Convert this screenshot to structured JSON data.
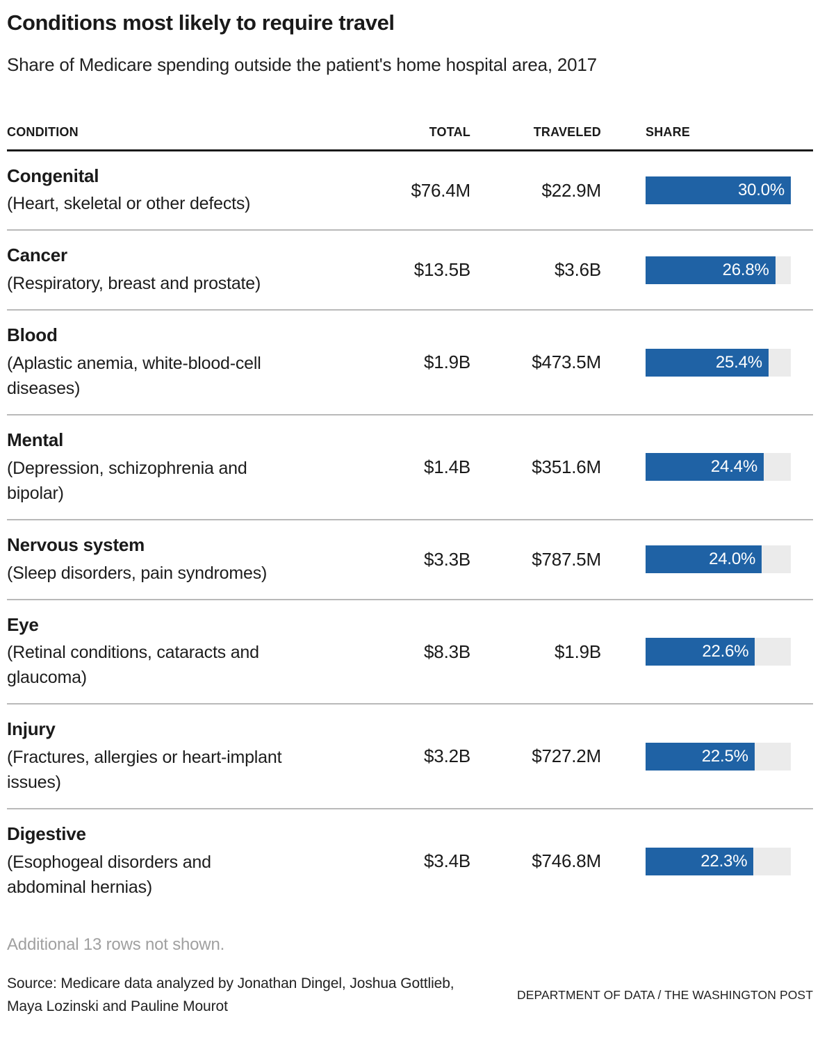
{
  "header": {
    "title": "Conditions most likely to require travel",
    "subtitle": "Share of Medicare spending outside the patient's home hospital area, 2017"
  },
  "table": {
    "columns": [
      "CONDITION",
      "TOTAL",
      "TRAVELED",
      "SHARE"
    ],
    "share_axis_max": 30,
    "rows": [
      {
        "condition": "Congenital",
        "description": "(Heart, skeletal or other defects)",
        "total": "$76.4M",
        "traveled": "$22.9M",
        "share_label": "30.0%",
        "share_value": 30.0
      },
      {
        "condition": "Cancer",
        "description": "(Respiratory, breast and prostate)",
        "total": "$13.5B",
        "traveled": "$3.6B",
        "share_label": "26.8%",
        "share_value": 26.8
      },
      {
        "condition": "Blood",
        "description": "(Aplastic anemia, white-blood-cell\ndiseases)",
        "total": "$1.9B",
        "traveled": "$473.5M",
        "share_label": "25.4%",
        "share_value": 25.4
      },
      {
        "condition": "Mental",
        "description": "(Depression, schizophrenia and\nbipolar)",
        "total": "$1.4B",
        "traveled": "$351.6M",
        "share_label": "24.4%",
        "share_value": 24.4
      },
      {
        "condition": "Nervous system",
        "description": "(Sleep disorders, pain syndromes)",
        "total": "$3.3B",
        "traveled": "$787.5M",
        "share_label": "24.0%",
        "share_value": 24.0
      },
      {
        "condition": "Eye",
        "description": "(Retinal conditions, cataracts and\nglaucoma)",
        "total": "$8.3B",
        "traveled": "$1.9B",
        "share_label": "22.6%",
        "share_value": 22.6
      },
      {
        "condition": "Injury",
        "description": "(Fractures, allergies or heart-implant\nissues)",
        "total": "$3.2B",
        "traveled": "$727.2M",
        "share_label": "22.5%",
        "share_value": 22.5
      },
      {
        "condition": "Digestive",
        "description": "(Esophogeal disorders and\nabdominal hernias)",
        "total": "$3.4B",
        "traveled": "$746.8M",
        "share_label": "22.3%",
        "share_value": 22.3
      }
    ]
  },
  "note": "Additional 13 rows not shown.",
  "footer": {
    "source": "Source: Medicare data analyzed by Jonathan Dingel, Joshua Gottlieb,\nMaya Lozinski and Pauline Mourot",
    "credit": "DEPARTMENT OF DATA / THE WASHINGTON POST"
  },
  "colors": {
    "bar_fill": "#1f62a5",
    "bar_track": "#ebebeb",
    "header_rule": "#1a1a1a",
    "row_divider": "#b9b9b9",
    "note_gray": "#a0a0a0"
  },
  "chart_data": {
    "type": "bar",
    "orientation": "horizontal",
    "title": "Conditions most likely to require travel",
    "subtitle": "Share of Medicare spending outside the patient's home hospital area, 2017",
    "categories": [
      "Congenital",
      "Cancer",
      "Blood",
      "Mental",
      "Nervous system",
      "Eye",
      "Injury",
      "Digestive"
    ],
    "category_descriptions": [
      "(Heart, skeletal or other defects)",
      "(Respiratory, breast and prostate)",
      "(Aplastic anemia, white-blood-cell diseases)",
      "(Depression, schizophrenia and bipolar)",
      "(Sleep disorders, pain syndromes)",
      "(Retinal conditions, cataracts and glaucoma)",
      "(Fractures, allergies or heart-implant issues)",
      "(Esophogeal disorders and abdominal hernias)"
    ],
    "series": [
      {
        "name": "Share traveled (%)",
        "values": [
          30.0,
          26.8,
          25.4,
          24.4,
          24.0,
          22.6,
          22.5,
          22.3
        ]
      },
      {
        "name": "Total spending",
        "values": [
          "$76.4M",
          "$13.5B",
          "$1.9B",
          "$1.4B",
          "$3.3B",
          "$8.3B",
          "$3.2B",
          "$3.4B"
        ]
      },
      {
        "name": "Traveled spending",
        "values": [
          "$22.9M",
          "$3.6B",
          "$473.5M",
          "$351.6M",
          "$787.5M",
          "$1.9B",
          "$727.2M",
          "$746.8M"
        ]
      }
    ],
    "xlim": [
      0,
      30
    ],
    "value_labels_inside_bars": true,
    "grid": false,
    "legend_position": "none"
  }
}
